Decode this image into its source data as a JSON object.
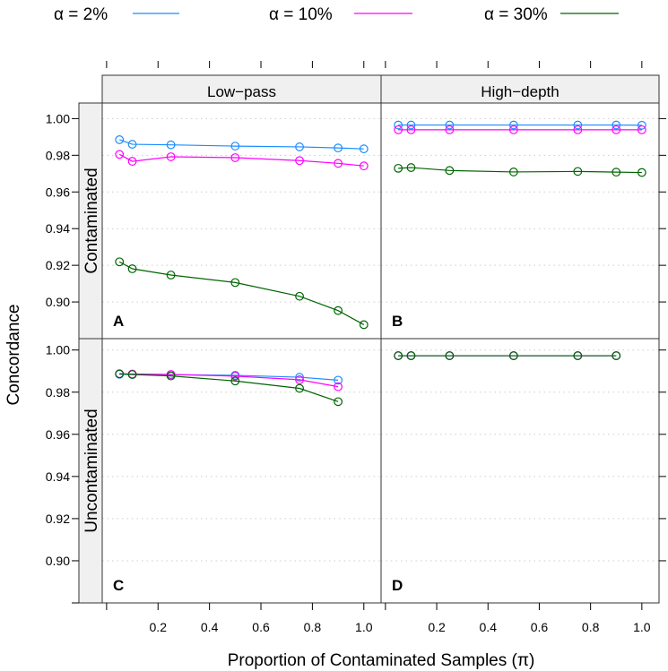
{
  "chart_data": {
    "type": "line",
    "ylabel": "Concordance",
    "xlabel": "Proportion of Contaminated Samples  (π)",
    "legend": {
      "placement": "top",
      "entries": [
        {
          "label": "α = 2%",
          "color": "#1a8cff"
        },
        {
          "label": "α = 10%",
          "color": "#ff00ff"
        },
        {
          "label": "α = 30%",
          "color": "#006400"
        }
      ]
    },
    "columns": [
      "Low−pass",
      "High−depth"
    ],
    "rows": [
      "Contaminated",
      "Uncontaminated"
    ],
    "xlim": [
      -0.017,
      1.067
    ],
    "xticks": [
      0.2,
      0.4,
      0.6,
      0.8,
      1.0
    ],
    "xtick_labels": [
      "0.2",
      "0.4",
      "0.6",
      "0.8",
      "1.0"
    ],
    "yticks": [
      0.9,
      0.92,
      0.94,
      0.96,
      0.98,
      1.0
    ],
    "ytick_labels": [
      "0.90",
      "0.92",
      "0.94",
      "0.96",
      "0.98",
      "1.00"
    ],
    "row_ylim": [
      [
        0.88,
        1.0085
      ],
      [
        0.88,
        1.0054
      ]
    ],
    "grid": true,
    "panels": [
      {
        "label": "A",
        "row": 0,
        "col": 0,
        "x": [
          0.05,
          0.1,
          0.25,
          0.5,
          0.75,
          0.9,
          1.0
        ],
        "series": [
          {
            "name": "α = 2%",
            "values": [
              0.9885,
              0.986,
              0.9857,
              0.985,
              0.9846,
              0.984,
              0.9835
            ]
          },
          {
            "name": "α = 10%",
            "values": [
              0.9805,
              0.9767,
              0.9792,
              0.9787,
              0.9771,
              0.9756,
              0.9742
            ]
          },
          {
            "name": "α = 30%",
            "values": [
              0.9219,
              0.9181,
              0.9147,
              0.9106,
              0.9031,
              0.8953,
              0.8876
            ]
          }
        ]
      },
      {
        "label": "B",
        "row": 0,
        "col": 1,
        "x": [
          0.05,
          0.1,
          0.25,
          0.5,
          0.75,
          0.9,
          1.0
        ],
        "series": [
          {
            "name": "α = 2%",
            "values": [
              0.9965,
              0.9965,
              0.9965,
              0.9965,
              0.9965,
              0.9965,
              0.9964
            ]
          },
          {
            "name": "α = 10%",
            "values": [
              0.9939,
              0.9939,
              0.9939,
              0.9939,
              0.9939,
              0.9939,
              0.9939
            ]
          },
          {
            "name": "α = 30%",
            "values": [
              0.9729,
              0.9733,
              0.9717,
              0.9709,
              0.9712,
              0.9708,
              0.9706
            ]
          }
        ]
      },
      {
        "label": "C",
        "row": 1,
        "col": 0,
        "x": [
          0.05,
          0.1,
          0.25,
          0.5,
          0.75,
          0.9
        ],
        "series": [
          {
            "name": "α = 2%",
            "values": [
              0.9885,
              0.9884,
              0.9883,
              0.988,
              0.9871,
              0.9857
            ]
          },
          {
            "name": "α = 10%",
            "values": [
              0.9887,
              0.9886,
              0.9884,
              0.9876,
              0.9859,
              0.9826
            ]
          },
          {
            "name": "α = 30%",
            "values": [
              0.9887,
              0.9884,
              0.9877,
              0.9853,
              0.9818,
              0.9755
            ]
          }
        ]
      },
      {
        "label": "D",
        "row": 1,
        "col": 1,
        "x": [
          0.05,
          0.1,
          0.25,
          0.5,
          0.75,
          0.9
        ],
        "series": [
          {
            "name": "α = 2%",
            "values": [
              0.9973,
              0.9973,
              0.9973,
              0.9973,
              0.9973,
              0.9973
            ]
          },
          {
            "name": "α = 10%",
            "values": [
              0.9973,
              0.9973,
              0.9973,
              0.9973,
              0.9973,
              0.9973
            ]
          },
          {
            "name": "α = 30%",
            "values": [
              0.9973,
              0.9973,
              0.9973,
              0.9973,
              0.9973,
              0.9973
            ]
          }
        ]
      }
    ]
  }
}
